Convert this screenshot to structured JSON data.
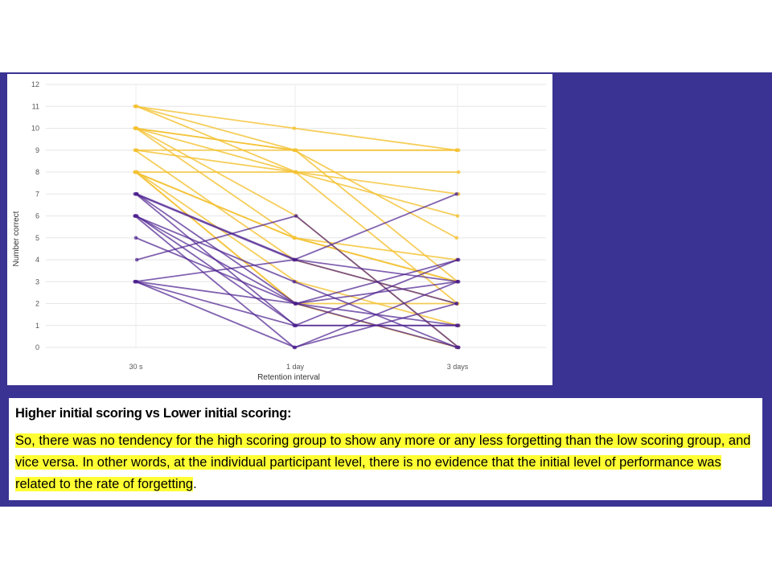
{
  "slide": {
    "background_band_color": "#3a3393",
    "heading": "Higher initial scoring vs Lower initial scoring:",
    "body_highlighted": "So, there was no tendency for the high scoring group to show any more or any less forgetting than the low scoring group, and vice versa. In other words, at the individual participant level, there is no evidence that the initial level of performance was related to the rate of forgetting",
    "body_tail": ".",
    "highlight_color": "#ffff33"
  },
  "chart_data": {
    "type": "line",
    "title": "",
    "xlabel": "Retention interval",
    "ylabel": "Number correct",
    "categories": [
      "30 s",
      "1 day",
      "3 days"
    ],
    "ylim": [
      0,
      12
    ],
    "yticks": [
      0,
      1,
      2,
      3,
      4,
      5,
      6,
      7,
      8,
      9,
      10,
      11,
      12
    ],
    "grid": true,
    "legend": "none",
    "group_colors": {
      "higher": "#f4c232",
      "lower": "#4b1f8f"
    },
    "series": [
      {
        "group": "higher",
        "values": [
          11,
          10,
          9
        ]
      },
      {
        "group": "higher",
        "values": [
          11,
          9,
          3
        ]
      },
      {
        "group": "higher",
        "values": [
          11,
          8,
          7
        ]
      },
      {
        "group": "higher",
        "values": [
          10,
          9,
          9
        ]
      },
      {
        "group": "higher",
        "values": [
          10,
          8,
          2
        ]
      },
      {
        "group": "higher",
        "values": [
          10,
          6,
          0
        ]
      },
      {
        "group": "higher",
        "values": [
          10,
          9,
          5
        ]
      },
      {
        "group": "higher",
        "values": [
          10,
          5,
          3
        ]
      },
      {
        "group": "higher",
        "values": [
          9,
          9,
          9
        ]
      },
      {
        "group": "higher",
        "values": [
          9,
          4,
          2
        ]
      },
      {
        "group": "higher",
        "values": [
          9,
          8,
          6
        ]
      },
      {
        "group": "higher",
        "values": [
          8,
          8,
          8
        ]
      },
      {
        "group": "higher",
        "values": [
          8,
          5,
          3
        ]
      },
      {
        "group": "higher",
        "values": [
          8,
          2,
          0
        ]
      },
      {
        "group": "higher",
        "values": [
          8,
          3,
          1
        ]
      },
      {
        "group": "higher",
        "values": [
          8,
          5,
          4
        ]
      },
      {
        "group": "higher",
        "values": [
          8,
          2,
          2
        ]
      },
      {
        "group": "lower",
        "values": [
          7,
          4,
          3
        ]
      },
      {
        "group": "lower",
        "values": [
          7,
          4,
          2
        ]
      },
      {
        "group": "lower",
        "values": [
          7,
          1,
          4
        ]
      },
      {
        "group": "lower",
        "values": [
          7,
          2,
          0
        ]
      },
      {
        "group": "lower",
        "values": [
          6,
          3,
          0
        ]
      },
      {
        "group": "lower",
        "values": [
          6,
          2,
          3
        ]
      },
      {
        "group": "lower",
        "values": [
          6,
          1,
          1
        ]
      },
      {
        "group": "lower",
        "values": [
          6,
          0,
          2
        ]
      },
      {
        "group": "lower",
        "values": [
          5,
          2,
          1
        ]
      },
      {
        "group": "lower",
        "values": [
          4,
          6,
          0
        ]
      },
      {
        "group": "lower",
        "values": [
          3,
          4,
          7
        ]
      },
      {
        "group": "lower",
        "values": [
          3,
          0,
          3
        ]
      },
      {
        "group": "lower",
        "values": [
          3,
          2,
          4
        ]
      },
      {
        "group": "lower",
        "values": [
          3,
          1,
          1
        ]
      }
    ]
  }
}
